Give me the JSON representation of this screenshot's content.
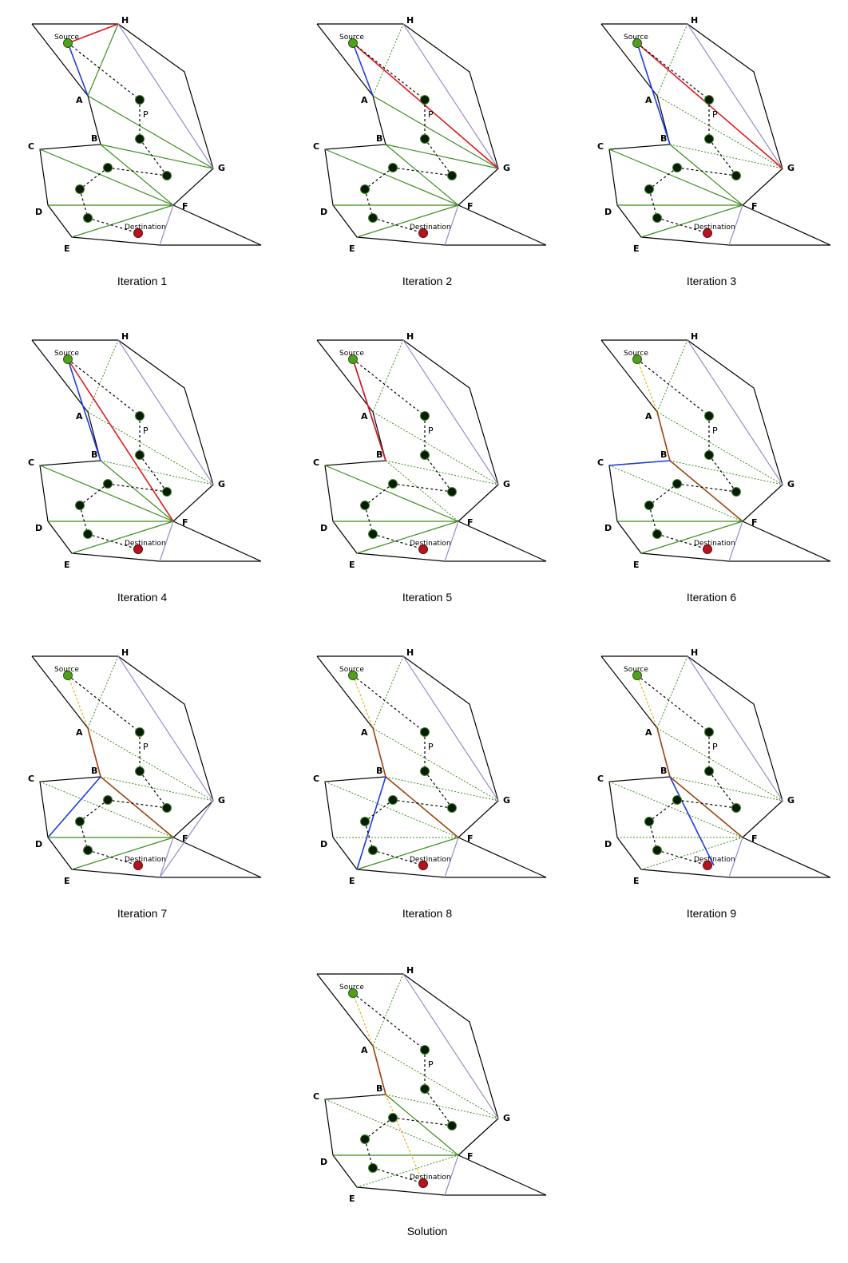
{
  "labels": {
    "vertices": [
      "A",
      "B",
      "C",
      "D",
      "E",
      "F",
      "G",
      "H"
    ],
    "source": "Source",
    "destination": "Destination",
    "portal": "P"
  },
  "colors": {
    "outline": "#000000",
    "green": "#3c8c1e",
    "purple": "#9b8cc8",
    "red": "#e0191e",
    "blue": "#1e3cdc",
    "brown": "#a04614",
    "orange": "#e6b428",
    "source_node": "#50a01e",
    "dest_node": "#b4141e",
    "path_node": "#0a1a0a"
  },
  "panels": [
    {
      "caption": "Iteration 1",
      "red": [
        [
          "S",
          "H"
        ]
      ],
      "blue": [
        [
          "S",
          "A"
        ]
      ],
      "brown": [],
      "orange": [],
      "dotted": [],
      "extra_purple": []
    },
    {
      "caption": "Iteration 2",
      "red": [
        [
          "S",
          "G"
        ]
      ],
      "blue": [
        [
          "S",
          "A"
        ]
      ],
      "brown": [],
      "orange": [],
      "dotted": [
        [
          "A",
          "H"
        ]
      ],
      "extra_purple": []
    },
    {
      "caption": "Iteration 3",
      "red": [
        [
          "S",
          "G"
        ]
      ],
      "blue": [
        [
          "S",
          "B"
        ]
      ],
      "brown": [],
      "orange": [],
      "dotted": [
        [
          "A",
          "H"
        ],
        [
          "A",
          "G"
        ],
        [
          "B",
          "G"
        ]
      ],
      "extra_purple": []
    },
    {
      "caption": "Iteration 4",
      "red": [
        [
          "S",
          "F"
        ]
      ],
      "blue": [
        [
          "S",
          "B"
        ]
      ],
      "brown": [],
      "orange": [],
      "dotted": [
        [
          "A",
          "H"
        ],
        [
          "A",
          "G"
        ],
        [
          "B",
          "G"
        ]
      ],
      "extra_purple": []
    },
    {
      "caption": "Iteration 5",
      "red": [
        [
          "S",
          "B"
        ]
      ],
      "blue": [
        [
          "S",
          "B"
        ]
      ],
      "brown": [],
      "orange": [],
      "dotted": [
        [
          "A",
          "H"
        ],
        [
          "A",
          "G"
        ],
        [
          "B",
          "G"
        ],
        [
          "B",
          "F"
        ]
      ],
      "extra_purple": []
    },
    {
      "caption": "Iteration 6",
      "red": [],
      "blue": [
        [
          "B",
          "C"
        ]
      ],
      "brown": [
        [
          "A",
          "B"
        ],
        [
          "B",
          "F"
        ]
      ],
      "orange": [
        [
          "S",
          "A"
        ]
      ],
      "dotted": [
        [
          "A",
          "H"
        ],
        [
          "A",
          "G"
        ],
        [
          "B",
          "G"
        ],
        [
          "C",
          "F"
        ]
      ],
      "extra_purple": []
    },
    {
      "caption": "Iteration 7",
      "red": [],
      "blue": [
        [
          "B",
          "D"
        ]
      ],
      "brown": [
        [
          "A",
          "B"
        ],
        [
          "B",
          "F"
        ]
      ],
      "orange": [
        [
          "S",
          "A"
        ]
      ],
      "dotted": [
        [
          "A",
          "H"
        ],
        [
          "A",
          "G"
        ],
        [
          "B",
          "G"
        ],
        [
          "C",
          "F"
        ]
      ],
      "extra_purple": [
        [
          "G",
          "X"
        ]
      ]
    },
    {
      "caption": "Iteration 8",
      "red": [],
      "blue": [
        [
          "B",
          "E"
        ]
      ],
      "brown": [
        [
          "A",
          "B"
        ],
        [
          "B",
          "F"
        ]
      ],
      "orange": [
        [
          "S",
          "A"
        ]
      ],
      "dotted": [
        [
          "A",
          "H"
        ],
        [
          "A",
          "G"
        ],
        [
          "B",
          "G"
        ],
        [
          "C",
          "F"
        ],
        [
          "D",
          "F"
        ]
      ],
      "extra_purple": []
    },
    {
      "caption": "Iteration 9",
      "red": [],
      "blue": [
        [
          "B",
          "Y"
        ]
      ],
      "brown": [
        [
          "A",
          "B"
        ],
        [
          "B",
          "F"
        ]
      ],
      "orange": [
        [
          "S",
          "A"
        ]
      ],
      "dotted": [
        [
          "A",
          "H"
        ],
        [
          "A",
          "G"
        ],
        [
          "B",
          "G"
        ],
        [
          "C",
          "F"
        ],
        [
          "D",
          "F"
        ],
        [
          "E",
          "F"
        ]
      ],
      "extra_purple": []
    },
    {
      "caption": "Solution",
      "red": [],
      "blue": [],
      "brown": [
        [
          "A",
          "B"
        ]
      ],
      "orange": [
        [
          "S",
          "A"
        ],
        [
          "B",
          "T"
        ]
      ],
      "dotted": [
        [
          "A",
          "H"
        ],
        [
          "A",
          "G"
        ],
        [
          "B",
          "G"
        ],
        [
          "C",
          "F"
        ],
        [
          "E",
          "F"
        ]
      ],
      "extra_purple": []
    }
  ]
}
